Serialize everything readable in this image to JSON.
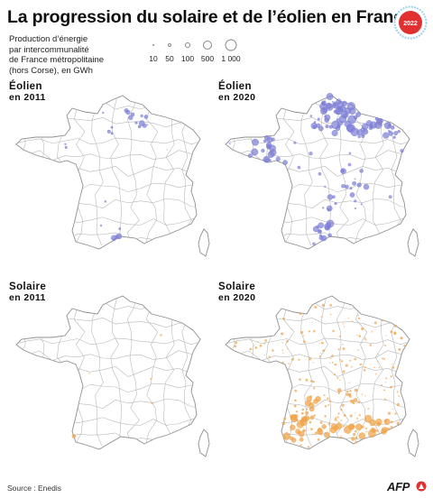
{
  "title": "La progression du solaire et de l’éolien en France",
  "badge_year": "2022",
  "subtitle_lines": [
    "Production d’énergie",
    "par intercommunalité",
    "de France métropolitaine",
    "(hors Corse), en GWh"
  ],
  "legend": {
    "items": [
      {
        "label": "10",
        "value": 10
      },
      {
        "label": "50",
        "value": 50
      },
      {
        "label": "100",
        "value": 100
      },
      {
        "label": "500",
        "value": 500
      },
      {
        "label": "1 000",
        "value": 1000
      }
    ]
  },
  "panels": [
    {
      "id": "eolien-2011",
      "line1": "Éolien",
      "line2": "en 2011",
      "color": "#7e7fd6"
    },
    {
      "id": "eolien-2020",
      "line1": "Éolien",
      "line2": "en 2020",
      "color": "#7e7fd6"
    },
    {
      "id": "solaire-2011",
      "line1": "Solaire",
      "line2": "en 2011",
      "color": "#f0a34a"
    },
    {
      "id": "solaire-2020",
      "line1": "Solaire",
      "line2": "en 2020",
      "color": "#f0a34a"
    }
  ],
  "source": "Source : Enedis",
  "credit": "AFP",
  "colors": {
    "wind": "#7e7fd6",
    "solar": "#f0a34a",
    "border": "#9a9a9a",
    "badge": "#e03030"
  }
}
